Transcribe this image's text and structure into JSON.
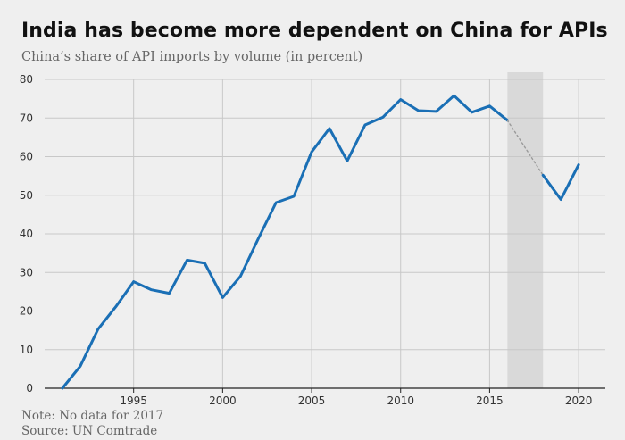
{
  "chart_data": {
    "type": "line",
    "title": "India has become more dependent on China for APIs",
    "subtitle": "China’s share of API imports by volume (in percent)",
    "xlabel": "",
    "ylabel": "",
    "xlim": [
      1990,
      2021.5
    ],
    "ylim": [
      0,
      80
    ],
    "x_ticks": [
      1995,
      2000,
      2005,
      2010,
      2015,
      2020
    ],
    "y_ticks": [
      0,
      10,
      20,
      30,
      40,
      50,
      60,
      70,
      80
    ],
    "grid": {
      "horizontal": true,
      "vertical": true
    },
    "legend": "none",
    "shaded_region": {
      "from": 2016,
      "to": 2018
    },
    "series": [
      {
        "color": "#1a6fb5",
        "segments": [
          {
            "style": "solid",
            "x": [
              1991,
              1992,
              1993,
              1994,
              1995,
              1996,
              1997,
              1998,
              1999,
              2000,
              2001,
              2002,
              2003,
              2004,
              2005,
              2006,
              2007,
              2008,
              2009,
              2010,
              2011,
              2012,
              2013,
              2014,
              2015,
              2016
            ],
            "y": [
              0,
              5.7,
              15.3,
              21.1,
              27.6,
              25.5,
              24.6,
              33.2,
              32.4,
              23.5,
              29,
              38.7,
              48.1,
              49.7,
              61.2,
              67.3,
              58.9,
              68.2,
              70.2,
              74.8,
              71.9,
              71.7,
              75.8,
              71.5,
              73.1,
              69.4
            ]
          },
          {
            "style": "dotted",
            "x": [
              2016,
              2018
            ],
            "y": [
              69.4,
              55.2
            ]
          },
          {
            "style": "solid",
            "x": [
              2018,
              2019,
              2020
            ],
            "y": [
              55.2,
              48.9,
              57.9
            ]
          }
        ]
      }
    ]
  },
  "notes": {
    "note": "Note: No data for 2017",
    "source": "Source: UN Comtrade"
  }
}
